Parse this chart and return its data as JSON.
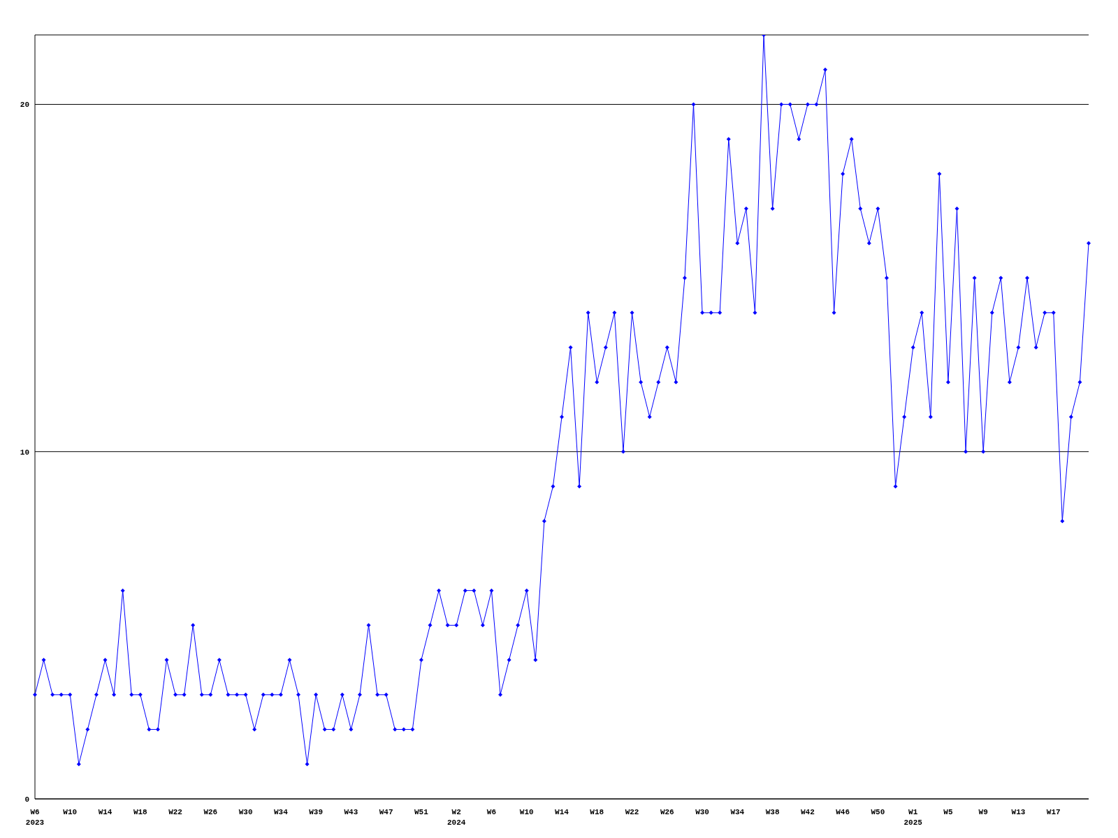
{
  "chart_data": {
    "type": "line",
    "categories": [
      "W6\n2023",
      null,
      null,
      null,
      "W10",
      null,
      null,
      null,
      "W14",
      null,
      null,
      null,
      "W18",
      null,
      null,
      null,
      "W22",
      null,
      null,
      null,
      "W26",
      null,
      null,
      null,
      "W30",
      null,
      null,
      null,
      "W34",
      null,
      null,
      null,
      "W39",
      null,
      null,
      null,
      "W43",
      null,
      null,
      null,
      "W47",
      null,
      null,
      null,
      "W51",
      null,
      null,
      null,
      "W2\n2024",
      null,
      null,
      null,
      "W6",
      null,
      null,
      null,
      "W10",
      null,
      null,
      null,
      "W14",
      null,
      null,
      null,
      "W18",
      null,
      null,
      null,
      "W22",
      null,
      null,
      null,
      "W26",
      null,
      null,
      null,
      "W30",
      null,
      null,
      null,
      "W34",
      null,
      null,
      null,
      "W38",
      null,
      null,
      null,
      "W42",
      null,
      null,
      null,
      "W46",
      null,
      null,
      null,
      "W50",
      null,
      null,
      null,
      "W1\n2025",
      null,
      null,
      null,
      "W5",
      null,
      null,
      null,
      "W9",
      null,
      null,
      null,
      "W13",
      null,
      null,
      null,
      "W17",
      null,
      null,
      null,
      null
    ],
    "series": [
      {
        "color": "#0000ff",
        "values": [
          3,
          4,
          3,
          3,
          3,
          1,
          2,
          3,
          4,
          3,
          6,
          3,
          3,
          2,
          2,
          4,
          3,
          3,
          5,
          3,
          3,
          4,
          3,
          3,
          3,
          2,
          3,
          3,
          3,
          4,
          3,
          1,
          3,
          2,
          2,
          3,
          2,
          3,
          5,
          3,
          3,
          2,
          2,
          2,
          4,
          5,
          6,
          5,
          5,
          6,
          6,
          5,
          6,
          3,
          4,
          5,
          6,
          4,
          8,
          9,
          11,
          13,
          9,
          14,
          12,
          13,
          14,
          10,
          14,
          12,
          11,
          12,
          13,
          12,
          15,
          20,
          14,
          14,
          14,
          19,
          16,
          17,
          14,
          22,
          17,
          20,
          20,
          19,
          20,
          20,
          21,
          14,
          18,
          19,
          17,
          16,
          17,
          15,
          9,
          11,
          13,
          14,
          11,
          18,
          12,
          17,
          10,
          15,
          10,
          14,
          15,
          12,
          13,
          15,
          13,
          14,
          14,
          8,
          11,
          12,
          16
        ]
      }
    ],
    "ylim": [
      0,
      22
    ],
    "yticks": [
      0,
      10,
      20
    ],
    "grid": "y",
    "marker": "diamond",
    "line_style": "solid"
  }
}
